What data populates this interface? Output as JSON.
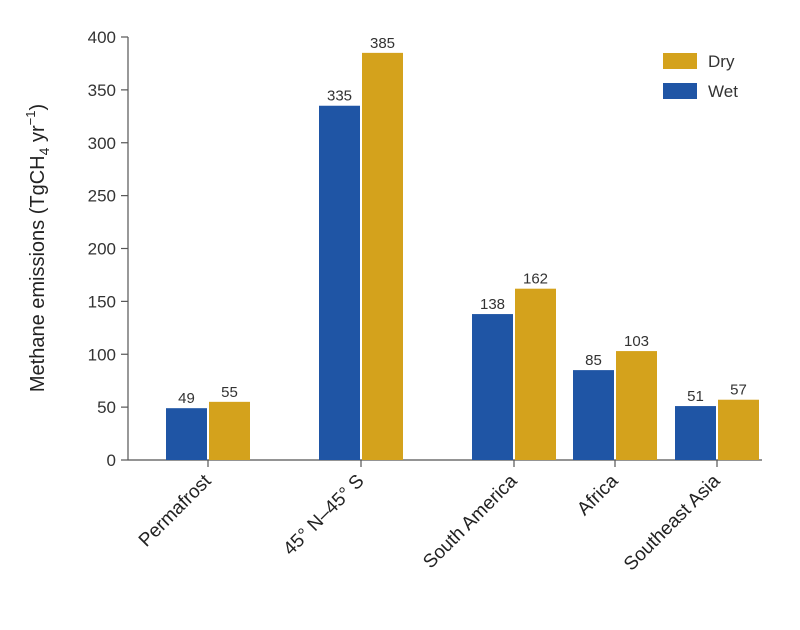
{
  "chart_data": {
    "type": "bar",
    "categories": [
      "Permafrost",
      "45° N–45° S",
      "South America",
      "Africa",
      "Southeast Asia"
    ],
    "series": [
      {
        "name": "Wet",
        "color": "#1f55a5",
        "values": [
          49,
          335,
          138,
          85,
          51
        ]
      },
      {
        "name": "Dry",
        "color": "#d4a21c",
        "values": [
          55,
          385,
          162,
          103,
          57
        ]
      }
    ],
    "ylabel": {
      "prefix": "Methane emissions (TgCH",
      "sub": "4",
      "mid": " yr",
      "sup": "−1",
      "suffix": ")"
    },
    "ylim": [
      0,
      400
    ],
    "yticks": [
      0,
      50,
      100,
      150,
      200,
      250,
      300,
      350,
      400
    ],
    "legend": {
      "position": "top-right",
      "order": [
        "Dry",
        "Wet"
      ]
    },
    "grid": false
  }
}
